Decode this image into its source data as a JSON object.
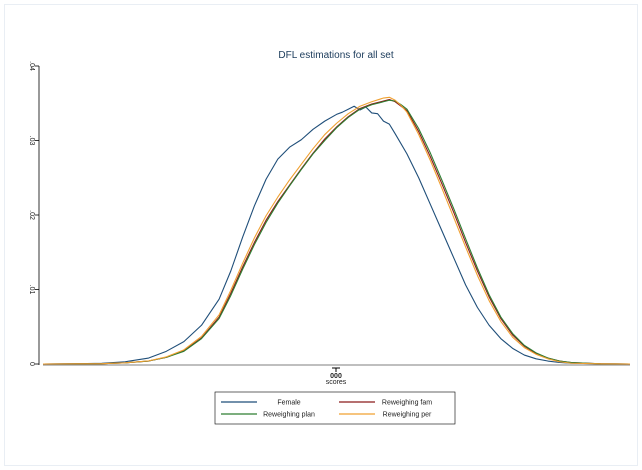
{
  "chart_data": {
    "type": "line",
    "title": "DFL estimations for all set",
    "xlabel": "scores",
    "xtick_labels": [
      "000"
    ],
    "ylabel": "",
    "ylim": [
      0,
      0.04
    ],
    "yticks": [
      {
        "value": 0,
        "label": "0"
      },
      {
        "value": 0.01,
        "label": ".01"
      },
      {
        "value": 0.02,
        "label": ".02"
      },
      {
        "value": 0.03,
        "label": ".03"
      },
      {
        "value": 0.04,
        "label": ".04"
      }
    ],
    "xlim": [
      0,
      100
    ],
    "grid": false,
    "legend": "bottom",
    "series": [
      {
        "name": "Female",
        "color": "#1f4e79",
        "x": [
          0,
          5,
          10,
          14,
          18,
          21,
          24,
          27,
          30,
          32,
          34,
          36,
          38,
          40,
          42,
          44,
          46,
          48,
          50,
          51,
          52,
          53,
          54,
          55,
          56,
          57,
          58,
          59,
          60,
          62,
          64,
          66,
          68,
          70,
          72,
          74,
          76,
          78,
          80,
          82,
          84,
          86,
          88,
          90,
          95,
          100
        ],
        "y": [
          0,
          2e-05,
          0.0001,
          0.0003,
          0.0008,
          0.0017,
          0.003,
          0.0052,
          0.0087,
          0.0125,
          0.017,
          0.0212,
          0.0248,
          0.0275,
          0.0291,
          0.0301,
          0.0315,
          0.0326,
          0.0335,
          0.0338,
          0.0342,
          0.0346,
          0.0341,
          0.0345,
          0.0337,
          0.0336,
          0.0326,
          0.0322,
          0.0309,
          0.0282,
          0.025,
          0.0214,
          0.0178,
          0.0142,
          0.0106,
          0.0076,
          0.0052,
          0.0034,
          0.0021,
          0.0012,
          0.0007,
          0.0004,
          0.0002,
          0.0001,
          2e-05,
          0
        ]
      },
      {
        "name": "Reweighing fam",
        "color": "#8b1a1a",
        "x": [
          0,
          10,
          14,
          18,
          21,
          24,
          27,
          30,
          32,
          34,
          36,
          38,
          40,
          42,
          44,
          46,
          48,
          50,
          52,
          54,
          56,
          58,
          59,
          60,
          61,
          62,
          64,
          66,
          68,
          70,
          72,
          74,
          76,
          78,
          80,
          82,
          84,
          86,
          88,
          90,
          95,
          100
        ],
        "y": [
          0,
          4e-05,
          0.00015,
          0.0004,
          0.0009,
          0.0018,
          0.0035,
          0.0063,
          0.0095,
          0.013,
          0.0163,
          0.0193,
          0.0218,
          0.024,
          0.0262,
          0.0283,
          0.0302,
          0.0318,
          0.0332,
          0.0343,
          0.0349,
          0.0353,
          0.0355,
          0.0352,
          0.0346,
          0.034,
          0.0312,
          0.0278,
          0.0241,
          0.0203,
          0.0163,
          0.0125,
          0.009,
          0.0061,
          0.0039,
          0.0024,
          0.0014,
          0.0008,
          0.0004,
          0.0002,
          3e-05,
          0
        ]
      },
      {
        "name": "Reweighing plan",
        "color": "#2e7d32",
        "x": [
          0,
          10,
          14,
          18,
          21,
          24,
          27,
          30,
          32,
          34,
          36,
          38,
          40,
          42,
          44,
          46,
          48,
          50,
          52,
          54,
          56,
          58,
          59,
          60,
          61,
          62,
          64,
          66,
          68,
          70,
          72,
          74,
          76,
          78,
          80,
          82,
          84,
          86,
          88,
          90,
          95,
          100
        ],
        "y": [
          0,
          4e-05,
          0.00015,
          0.0004,
          0.0009,
          0.0017,
          0.0034,
          0.0061,
          0.0092,
          0.0127,
          0.016,
          0.019,
          0.0216,
          0.0239,
          0.0261,
          0.0282,
          0.03,
          0.0317,
          0.0331,
          0.0342,
          0.0348,
          0.0352,
          0.0354,
          0.0353,
          0.0348,
          0.0342,
          0.0316,
          0.0283,
          0.0246,
          0.0208,
          0.0168,
          0.0129,
          0.0093,
          0.0063,
          0.0041,
          0.0025,
          0.0015,
          0.0008,
          0.0004,
          0.0002,
          3e-05,
          0
        ]
      },
      {
        "name": "Reweighing per",
        "color": "#f0a030",
        "x": [
          0,
          10,
          14,
          18,
          21,
          24,
          27,
          30,
          32,
          34,
          36,
          38,
          40,
          42,
          44,
          46,
          48,
          50,
          52,
          54,
          56,
          58,
          59,
          60,
          61,
          62,
          64,
          66,
          68,
          70,
          72,
          74,
          76,
          78,
          80,
          82,
          84,
          86,
          88,
          90,
          95,
          100
        ],
        "y": [
          0,
          4e-05,
          0.00016,
          0.00042,
          0.00095,
          0.0019,
          0.0037,
          0.0066,
          0.0099,
          0.0135,
          0.0169,
          0.0199,
          0.0224,
          0.0247,
          0.0268,
          0.0289,
          0.0308,
          0.0323,
          0.0336,
          0.0346,
          0.0352,
          0.0357,
          0.0358,
          0.0354,
          0.0347,
          0.0338,
          0.0308,
          0.0273,
          0.0235,
          0.0196,
          0.0157,
          0.0119,
          0.0085,
          0.0057,
          0.0036,
          0.0022,
          0.0013,
          0.0007,
          0.0003,
          0.0001,
          2e-05,
          0
        ]
      }
    ]
  }
}
